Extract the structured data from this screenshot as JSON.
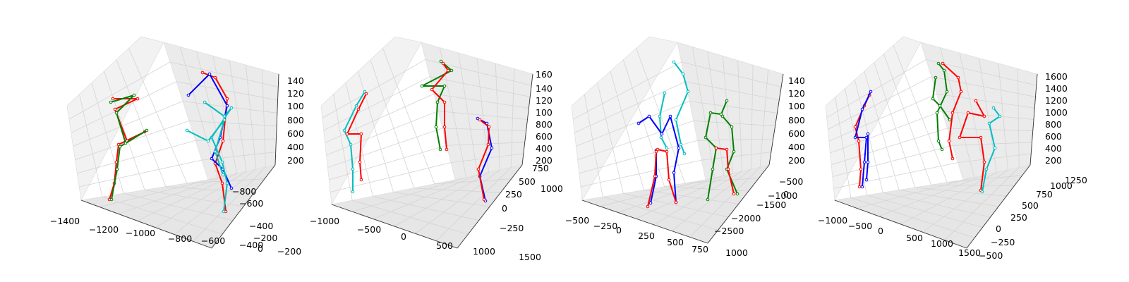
{
  "chart_data": [
    {
      "type": "3d-skeleton",
      "x_ticks": [
        "−1400",
        "−1200",
        "−1000",
        "−800",
        "−600",
        "−400",
        "−200"
      ],
      "y_ticks": [
        "−800",
        "−600",
        "−400",
        "−200",
        "0",
        "200"
      ],
      "z_ticks": [
        "200",
        "400",
        "600",
        "800",
        "100",
        "120",
        "140"
      ],
      "grid": true,
      "skeleton_colors": {
        "red": "#ff0000",
        "green": "#007f00",
        "blue": "#0000ff",
        "cyan": "#00bfbf"
      }
    },
    {
      "type": "3d-skeleton",
      "x_ticks": [
        "−1000",
        "−500",
        "0",
        "500",
        "1000",
        "1500"
      ],
      "y_ticks": [
        "−250",
        "0",
        "250",
        "500",
        "750",
        "1000"
      ],
      "z_ticks": [
        "200",
        "400",
        "600",
        "800",
        "100",
        "120",
        "140",
        "160"
      ],
      "grid": true,
      "skeleton_colors": {
        "red": "#ff0000",
        "green": "#007f00",
        "blue": "#0000ff",
        "cyan": "#00bfbf"
      }
    },
    {
      "type": "3d-skeleton",
      "x_ticks": [
        "−500",
        "−250",
        "0",
        "250",
        "500",
        "750",
        "1000"
      ],
      "y_ticks": [
        "−2500",
        "−2000",
        "−1500",
        "−1000",
        "−500",
        "0"
      ],
      "z_ticks": [
        "200",
        "400",
        "600",
        "800",
        "100",
        "120",
        "140"
      ],
      "grid": true,
      "skeleton_colors": {
        "red": "#ff0000",
        "green": "#007f00",
        "blue": "#0000ff",
        "cyan": "#00bfbf"
      }
    },
    {
      "type": "3d-skeleton",
      "x_ticks": [
        "−1000",
        "−500",
        "0",
        "500",
        "1000",
        "1500"
      ],
      "y_ticks": [
        "−500",
        "−250",
        "0",
        "250",
        "500",
        "750",
        "1000",
        "1250"
      ],
      "z_ticks": [
        "200",
        "400",
        "600",
        "800",
        "1000",
        "1200",
        "1400",
        "1600"
      ],
      "grid": true,
      "skeleton_colors": {
        "red": "#ff0000",
        "green": "#007f00",
        "blue": "#0000ff",
        "cyan": "#00bfbf"
      }
    }
  ]
}
